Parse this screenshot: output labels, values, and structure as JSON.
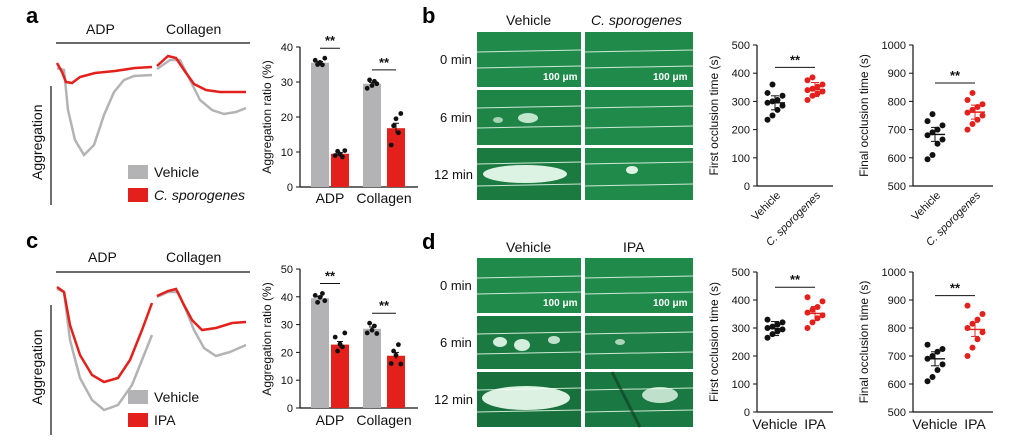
{
  "panels": {
    "a": {
      "letter": "a",
      "trace_headers": [
        "ADP",
        "Collagen"
      ],
      "trace_ylabel": "Aggregation",
      "legend": [
        "Vehicle",
        "C. sporogenes"
      ]
    },
    "b": {
      "letter": "b",
      "micro_headers": [
        "Vehicle",
        "C. sporogenes"
      ],
      "time_labels": [
        "0 min",
        "6 min",
        "12 min"
      ],
      "scale_bar": "100 μm"
    },
    "c": {
      "letter": "c",
      "trace_headers": [
        "ADP",
        "Collagen"
      ],
      "trace_ylabel": "Aggregation",
      "legend": [
        "Vehicle",
        "IPA"
      ]
    },
    "d": {
      "letter": "d",
      "micro_headers": [
        "Vehicle",
        "IPA"
      ],
      "time_labels": [
        "0 min",
        "6 min",
        "12 min"
      ],
      "scale_bar": "100 μm"
    }
  },
  "colors": {
    "vehicle": "#b3b3b6",
    "treatment": "#e3201b",
    "micro_bg": "#1f8a4a"
  },
  "chart_data": [
    {
      "id": "a-bar",
      "type": "bar",
      "categories": [
        "ADP",
        "Collagen"
      ],
      "ylabel": "Aggregation ratio (%)",
      "ylim": [
        0,
        40
      ],
      "yticks": [
        0,
        10,
        20,
        30,
        40
      ],
      "series": [
        {
          "name": "Vehicle",
          "values": [
            35.5,
            29.5
          ],
          "points": [
            [
              36.2,
              35.0,
              35.6,
              34.9,
              36.8
            ],
            [
              28.2,
              30.6,
              29.0,
              30.2,
              29.5
            ]
          ]
        },
        {
          "name": "C. sporogenes",
          "values": [
            9.5,
            16.8
          ],
          "points": [
            [
              9.0,
              10.2,
              9.4,
              8.6,
              10.4
            ],
            [
              12.0,
              17.5,
              19.5,
              15.5,
              21.0
            ]
          ]
        }
      ],
      "significance": [
        "**",
        "**"
      ]
    },
    {
      "id": "c-bar",
      "type": "bar",
      "categories": [
        "ADP",
        "Collagen"
      ],
      "ylabel": "Aggregation ratio (%)",
      "ylim": [
        0,
        50
      ],
      "yticks": [
        0,
        10,
        20,
        30,
        40,
        50
      ],
      "series": [
        {
          "name": "Vehicle",
          "values": [
            39.5,
            28.5
          ],
          "points": [
            [
              40.5,
              38.0,
              39.8,
              41.2,
              38.6
            ],
            [
              27.0,
              30.5,
              28.0,
              29.5,
              26.8
            ]
          ]
        },
        {
          "name": "IPA",
          "values": [
            22.8,
            18.8
          ],
          "points": [
            [
              25.5,
              20.5,
              23.0,
              22.0,
              27.0
            ],
            [
              16.0,
              20.5,
              19.0,
              22.8,
              15.8
            ]
          ]
        }
      ],
      "significance": [
        "**",
        "**"
      ]
    },
    {
      "id": "b-first",
      "type": "scatter",
      "categories": [
        "Vehicle",
        "C. sporogenes"
      ],
      "ylabel": "First occlusion time (s)",
      "ylim": [
        0,
        500
      ],
      "yticks": [
        0,
        100,
        200,
        300,
        400,
        500
      ],
      "means": [
        295,
        342
      ],
      "points": [
        [
          235,
          250,
          270,
          285,
          295,
          300,
          305,
          320,
          330,
          360
        ],
        [
          305,
          320,
          328,
          335,
          340,
          345,
          352,
          360,
          375,
          385
        ]
      ],
      "significance": "**"
    },
    {
      "id": "b-final",
      "type": "scatter",
      "categories": [
        "Vehicle",
        "C. sporogenes"
      ],
      "ylabel": "Final occlusion time (s)",
      "ylim": [
        500,
        1000
      ],
      "yticks": [
        500,
        600,
        700,
        800,
        900,
        1000
      ],
      "means": [
        683,
        762
      ],
      "points": [
        [
          595,
          610,
          650,
          665,
          680,
          690,
          700,
          715,
          730,
          755
        ],
        [
          700,
          720,
          735,
          750,
          760,
          770,
          780,
          790,
          805,
          830
        ]
      ],
      "significance": "**"
    },
    {
      "id": "d-first",
      "type": "scatter",
      "categories": [
        "Vehicle",
        "IPA"
      ],
      "ylabel": "First occlusion time (s)",
      "ylim": [
        0,
        500
      ],
      "yticks": [
        0,
        100,
        200,
        300,
        400,
        500
      ],
      "means": [
        298,
        352
      ],
      "points": [
        [
          265,
          278,
          288,
          295,
          300,
          305,
          312,
          320,
          330
        ],
        [
          300,
          320,
          335,
          345,
          355,
          365,
          375,
          395,
          410
        ]
      ],
      "significance": "**"
    },
    {
      "id": "d-final",
      "type": "scatter",
      "categories": [
        "Vehicle",
        "IPA"
      ],
      "ylabel": "Final occlusion time (s)",
      "ylim": [
        500,
        1000
      ],
      "yticks": [
        500,
        600,
        700,
        800,
        900,
        1000
      ],
      "means": [
        690,
        795
      ],
      "points": [
        [
          610,
          625,
          650,
          670,
          690,
          700,
          715,
          725,
          740
        ],
        [
          700,
          730,
          760,
          785,
          800,
          815,
          830,
          850,
          880
        ]
      ],
      "significance": "**"
    }
  ]
}
